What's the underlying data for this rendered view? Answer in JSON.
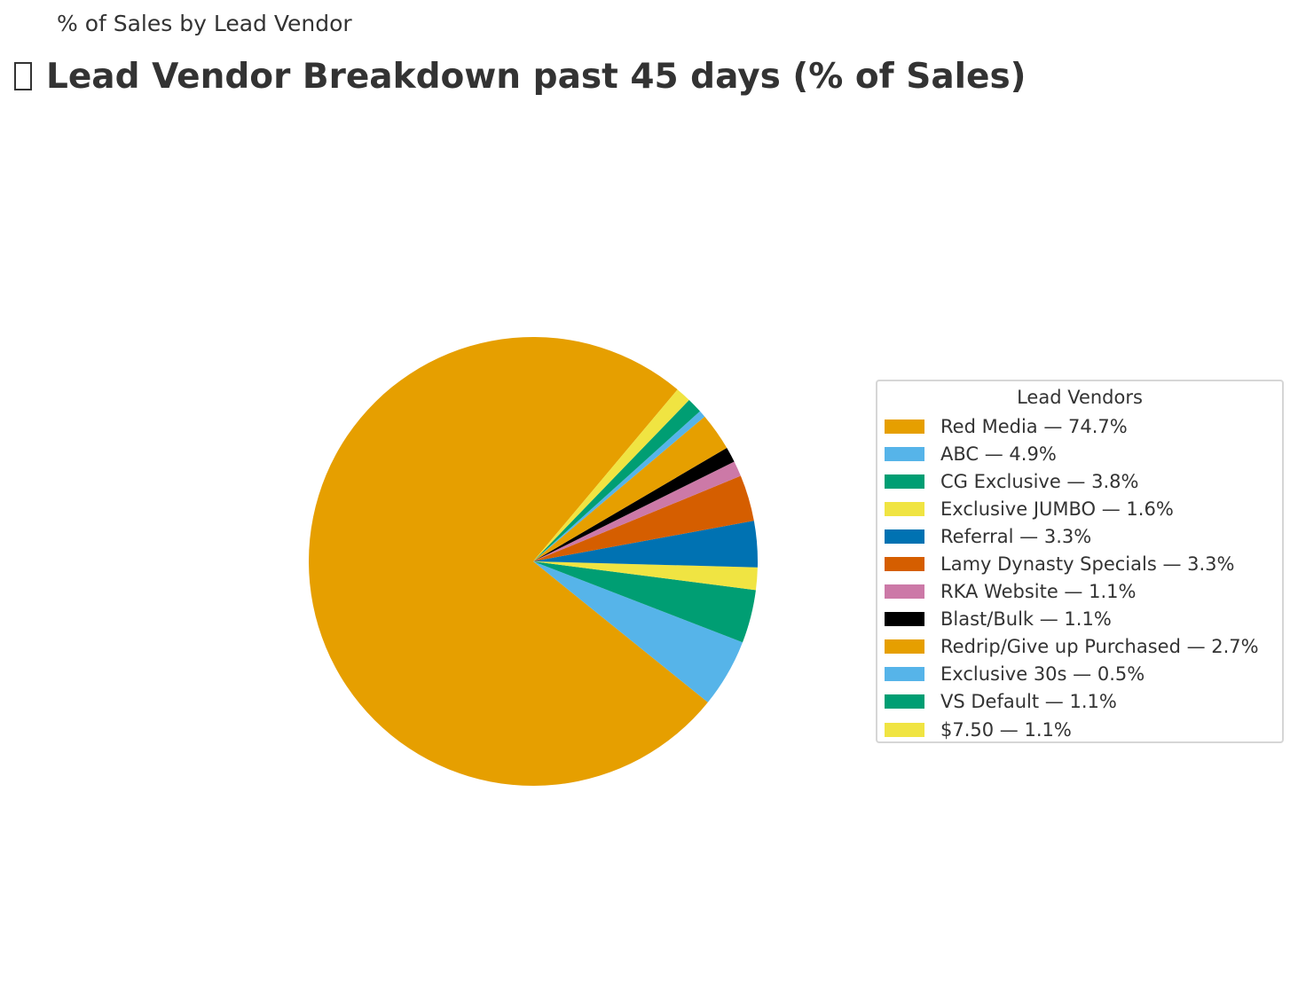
{
  "header": {
    "subtitle": "% of Sales by Lead Vendor",
    "title": "Lead Vendor Breakdown past 45 days (% of Sales)"
  },
  "chart_data": {
    "type": "pie",
    "title": "Lead Vendor Breakdown past 45 days (% of Sales)",
    "legend": {
      "title": "Lead Vendors",
      "placement": "right"
    },
    "slices": [
      {
        "label": "Red Media",
        "value": 74.7,
        "legend_text": "Red Media — 74.7%",
        "color": "#E69F00"
      },
      {
        "label": "ABC",
        "value": 4.9,
        "legend_text": "ABC — 4.9%",
        "color": "#56B4E9"
      },
      {
        "label": "CG Exclusive",
        "value": 3.8,
        "legend_text": "CG Exclusive — 3.8%",
        "color": "#009E73"
      },
      {
        "label": "Exclusive JUMBO",
        "value": 1.6,
        "legend_text": "Exclusive JUMBO — 1.6%",
        "color": "#F0E442"
      },
      {
        "label": "Referral",
        "value": 3.3,
        "legend_text": "Referral — 3.3%",
        "color": "#0072B2"
      },
      {
        "label": "Lamy Dynasty Specials",
        "value": 3.3,
        "legend_text": "Lamy Dynasty Specials — 3.3%",
        "color": "#D55E00"
      },
      {
        "label": "RKA Website",
        "value": 1.1,
        "legend_text": "RKA Website — 1.1%",
        "color": "#CC79A7"
      },
      {
        "label": "Blast/Bulk",
        "value": 1.1,
        "legend_text": "Blast/Bulk — 1.1%",
        "color": "#000000"
      },
      {
        "label": "Redrip/Give up Purchased",
        "value": 2.7,
        "legend_text": "Redrip/Give up Purchased — 2.7%",
        "color": "#E69F00"
      },
      {
        "label": "Exclusive 30s",
        "value": 0.5,
        "legend_text": "Exclusive 30s — 0.5%",
        "color": "#56B4E9"
      },
      {
        "label": "VS Default",
        "value": 1.1,
        "legend_text": "VS Default — 1.1%",
        "color": "#009E73"
      },
      {
        "label": "$7.50",
        "value": 1.1,
        "legend_text": "$7.50 — 1.1%",
        "color": "#F0E442"
      }
    ]
  }
}
